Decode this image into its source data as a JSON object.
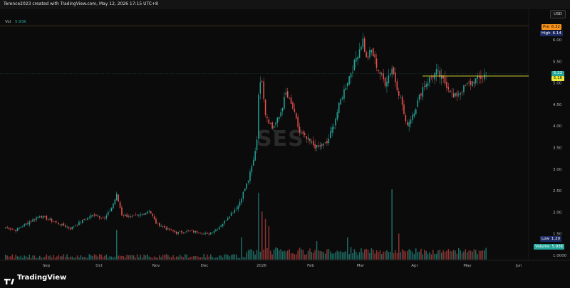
{
  "header": {
    "credit": "Terence2023 created with TradingView.com, May 12, 2026 17:15 UTC+8"
  },
  "currency_button": "USD",
  "volume_legend": {
    "label": "Vol",
    "value": "5.93K"
  },
  "watermark": "SES",
  "brand": {
    "name": "TradingView",
    "logo_icon": "tradingview-logo-icon"
  },
  "badges": {
    "pre": {
      "label": "Pre",
      "value": "6.32",
      "color": "#f7931a"
    },
    "high": {
      "label": "High",
      "value": "6.14",
      "color": "#1e2b63"
    },
    "low": {
      "label": "Low",
      "value": "1.20",
      "color": "#1e2b63"
    },
    "volume": {
      "label": "Volume",
      "value": "5.93K",
      "color": "#26a69a"
    }
  },
  "price_tags": {
    "last": {
      "value": "5.22",
      "color": "#26a69a"
    },
    "level": {
      "value": "5.16",
      "color": "#e9e93a"
    }
  },
  "colors": {
    "up": "#26a69a",
    "down": "#ef5350",
    "level_line": "#e9e93a",
    "background": "#0b0b0b"
  },
  "chart_data": {
    "type": "candlestick",
    "y_axis": {
      "ticks": [
        "6.00",
        "5.50",
        "5.00",
        "4.50",
        "4.00",
        "3.50",
        "3.00",
        "2.50",
        "2.00",
        "1.50",
        "1.0000"
      ],
      "range": [
        1.0,
        6.3
      ]
    },
    "x_axis": {
      "ticks": [
        "Sep",
        "Oct",
        "Nov",
        "Dec",
        "2026",
        "Feb",
        "Mar",
        "Apr",
        "May",
        "Jun"
      ]
    },
    "horizontal_levels": [
      5.16
    ],
    "waypoints": [
      [
        0,
        1.65
      ],
      [
        6,
        1.58
      ],
      [
        14,
        1.78
      ],
      [
        20,
        1.92
      ],
      [
        26,
        1.82
      ],
      [
        32,
        1.72
      ],
      [
        38,
        1.62
      ],
      [
        44,
        1.78
      ],
      [
        52,
        1.95
      ],
      [
        58,
        1.85
      ],
      [
        62,
        2.1
      ],
      [
        65,
        2.4
      ],
      [
        68,
        1.95
      ],
      [
        74,
        1.88
      ],
      [
        80,
        1.95
      ],
      [
        84,
        2.05
      ],
      [
        88,
        1.75
      ],
      [
        94,
        1.62
      ],
      [
        100,
        1.52
      ],
      [
        106,
        1.55
      ],
      [
        112,
        1.55
      ],
      [
        118,
        1.48
      ],
      [
        124,
        1.62
      ],
      [
        128,
        1.78
      ],
      [
        132,
        1.98
      ],
      [
        136,
        2.15
      ],
      [
        139,
        2.45
      ],
      [
        142,
        2.75
      ],
      [
        145,
        3.2
      ],
      [
        147,
        3.7
      ],
      [
        148,
        4.8
      ],
      [
        150,
        5.1
      ],
      [
        152,
        4.3
      ],
      [
        156,
        3.95
      ],
      [
        160,
        4.2
      ],
      [
        164,
        4.75
      ],
      [
        168,
        4.4
      ],
      [
        172,
        3.85
      ],
      [
        176,
        3.7
      ],
      [
        182,
        3.5
      ],
      [
        188,
        3.6
      ],
      [
        192,
        4.05
      ],
      [
        196,
        4.6
      ],
      [
        200,
        5.05
      ],
      [
        204,
        5.45
      ],
      [
        206,
        5.7
      ],
      [
        209,
        6.0
      ],
      [
        211,
        5.55
      ],
      [
        214,
        5.75
      ],
      [
        218,
        5.3
      ],
      [
        222,
        5.0
      ],
      [
        226,
        5.35
      ],
      [
        228,
        5.05
      ],
      [
        232,
        4.5
      ],
      [
        234,
        4.05
      ],
      [
        236,
        4.1
      ],
      [
        240,
        4.45
      ],
      [
        244,
        4.9
      ],
      [
        248,
        5.1
      ],
      [
        252,
        5.25
      ],
      [
        256,
        5.05
      ],
      [
        260,
        4.85
      ],
      [
        262,
        4.65
      ],
      [
        266,
        4.8
      ],
      [
        270,
        4.95
      ],
      [
        274,
        5.05
      ],
      [
        278,
        5.12
      ],
      [
        281,
        5.22
      ]
    ],
    "volume_spikes": [
      [
        65,
        8
      ],
      [
        138,
        6
      ],
      [
        148,
        18
      ],
      [
        150,
        13
      ],
      [
        152,
        11
      ],
      [
        154,
        9
      ],
      [
        226,
        19
      ],
      [
        230,
        7
      ],
      [
        182,
        5
      ],
      [
        200,
        6
      ]
    ]
  }
}
